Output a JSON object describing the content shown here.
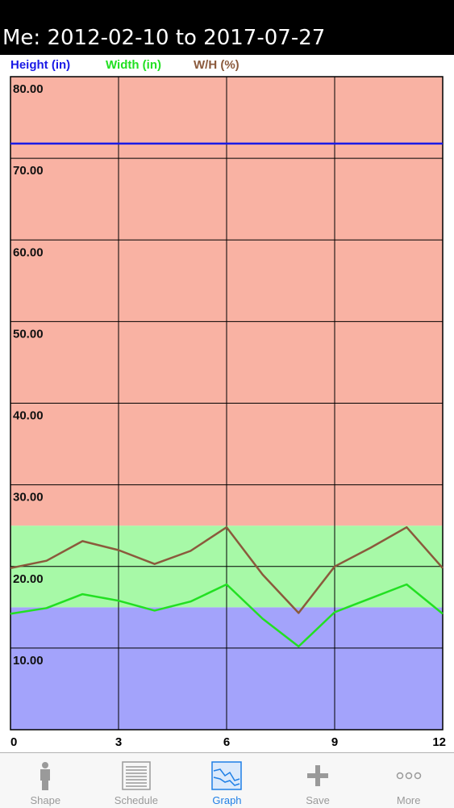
{
  "header": {
    "title": "Me: 2012-02-10 to 2017-07-27"
  },
  "legend": [
    {
      "label": "Height (in)",
      "color": "#1a1ae6"
    },
    {
      "label": "Width (in)",
      "color": "#22e022"
    },
    {
      "label": "W/H (%)",
      "color": "#8b5a3c"
    }
  ],
  "tabs": [
    {
      "label": "Shape",
      "icon": "person-silhouette-icon"
    },
    {
      "label": "Schedule",
      "icon": "schedule-list-icon"
    },
    {
      "label": "Graph",
      "icon": "graph-icon",
      "active": true
    },
    {
      "label": "Save",
      "icon": "plus-icon"
    },
    {
      "label": "More",
      "icon": "more-dots-icon"
    }
  ],
  "chart_data": {
    "type": "line",
    "x": [
      0,
      1,
      2,
      3,
      4,
      5,
      6,
      7,
      8,
      9,
      10,
      11,
      12
    ],
    "xlim": [
      0,
      12
    ],
    "ylim": [
      0,
      80
    ],
    "xticks": [
      0,
      3,
      6,
      9,
      12
    ],
    "xtick_labels": [
      "0",
      "3",
      "6",
      "9",
      "12"
    ],
    "yticks": [
      10,
      20,
      30,
      40,
      50,
      60,
      70,
      80
    ],
    "ytick_labels": [
      "10.00",
      "20.00",
      "30.00",
      "40.00",
      "50.00",
      "60.00",
      "70.00",
      "80.00"
    ],
    "grid": true,
    "bands": [
      {
        "from": 0,
        "to": 15,
        "color": "#a3a3fb"
      },
      {
        "from": 15,
        "to": 25,
        "color": "#a7f9a7"
      },
      {
        "from": 25,
        "to": 80,
        "color": "#f9b2a3"
      }
    ],
    "series": [
      {
        "name": "Height (in)",
        "color": "#1a1ae6",
        "values": [
          71.8,
          71.8,
          71.8,
          71.8,
          71.8,
          71.8,
          71.8,
          71.8,
          71.8,
          71.8,
          71.8,
          71.8,
          71.8
        ]
      },
      {
        "name": "Width (in)",
        "color": "#22e022",
        "values": [
          14.2,
          14.9,
          16.6,
          15.8,
          14.6,
          15.7,
          17.8,
          13.6,
          10.2,
          14.4,
          16.1,
          17.8,
          14.2
        ]
      },
      {
        "name": "W/H (%)",
        "color": "#8b5a3c",
        "values": [
          19.8,
          20.7,
          23.1,
          22.0,
          20.3,
          21.9,
          24.8,
          19.0,
          14.3,
          20.0,
          22.3,
          24.8,
          19.8
        ]
      }
    ]
  }
}
